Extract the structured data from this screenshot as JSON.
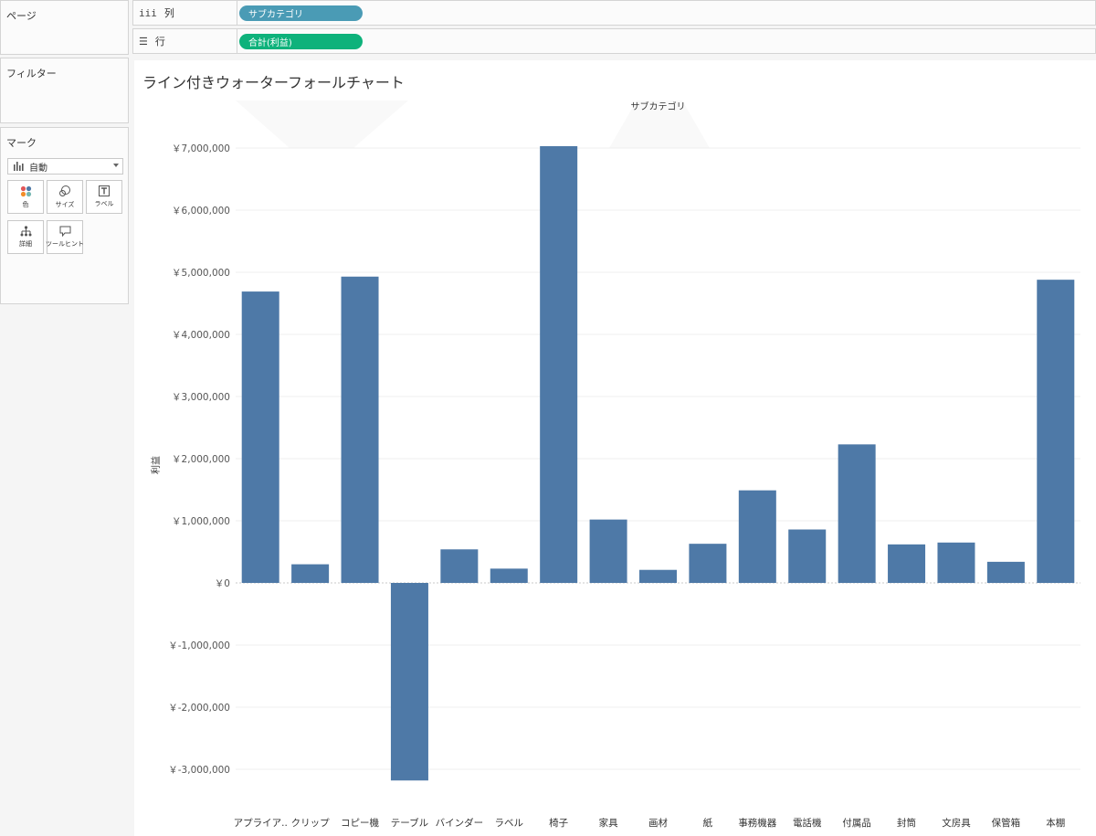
{
  "panes": {
    "pages_title": "ページ",
    "filters_title": "フィルター",
    "marks_title": "マーク"
  },
  "shelves": {
    "columns_label": "列",
    "columns_icon": "columns-icon",
    "columns_pill": "サブカテゴリ",
    "rows_label": "行",
    "rows_icon": "rows-icon",
    "rows_pill": "合計(利益)",
    "columns_pill_color": "#4a9bb5",
    "rows_pill_color": "#0eb27b"
  },
  "marks": {
    "type_value": "自動",
    "type_icon": "bar-chart-icon",
    "buttons": {
      "color": "色",
      "size": "サイズ",
      "label": "ラベル",
      "detail": "詳細",
      "tooltip": "ツールヒント"
    }
  },
  "sheet": {
    "title": "ライン付きウォーターフォールチャート"
  },
  "chart_data": {
    "type": "bar",
    "column_header": "サブカテゴリ",
    "ylabel": "利益",
    "categories": [
      "アプライア..",
      "クリップ",
      "コピー機",
      "テーブル",
      "バインダー",
      "ラベル",
      "椅子",
      "家具",
      "画材",
      "紙",
      "事務機器",
      "電話機",
      "付属品",
      "封筒",
      "文房具",
      "保管箱",
      "本棚"
    ],
    "values": [
      4690000,
      300000,
      4930000,
      -3180000,
      540000,
      230000,
      7030000,
      1020000,
      210000,
      630000,
      1490000,
      860000,
      2230000,
      620000,
      650000,
      340000,
      4880000
    ],
    "ylim": [
      -3600000,
      7500000
    ],
    "yticks": [
      -3000000,
      -2000000,
      -1000000,
      0,
      1000000,
      2000000,
      3000000,
      4000000,
      5000000,
      6000000,
      7000000
    ],
    "ytick_labels": [
      "￥-3,000,000",
      "￥-2,000,000",
      "￥-1,000,000",
      "￥0",
      "￥1,000,000",
      "￥2,000,000",
      "￥3,000,000",
      "￥4,000,000",
      "￥5,000,000",
      "￥6,000,000",
      "￥7,000,000"
    ],
    "bar_color": "#4e79a7",
    "grid": true
  }
}
